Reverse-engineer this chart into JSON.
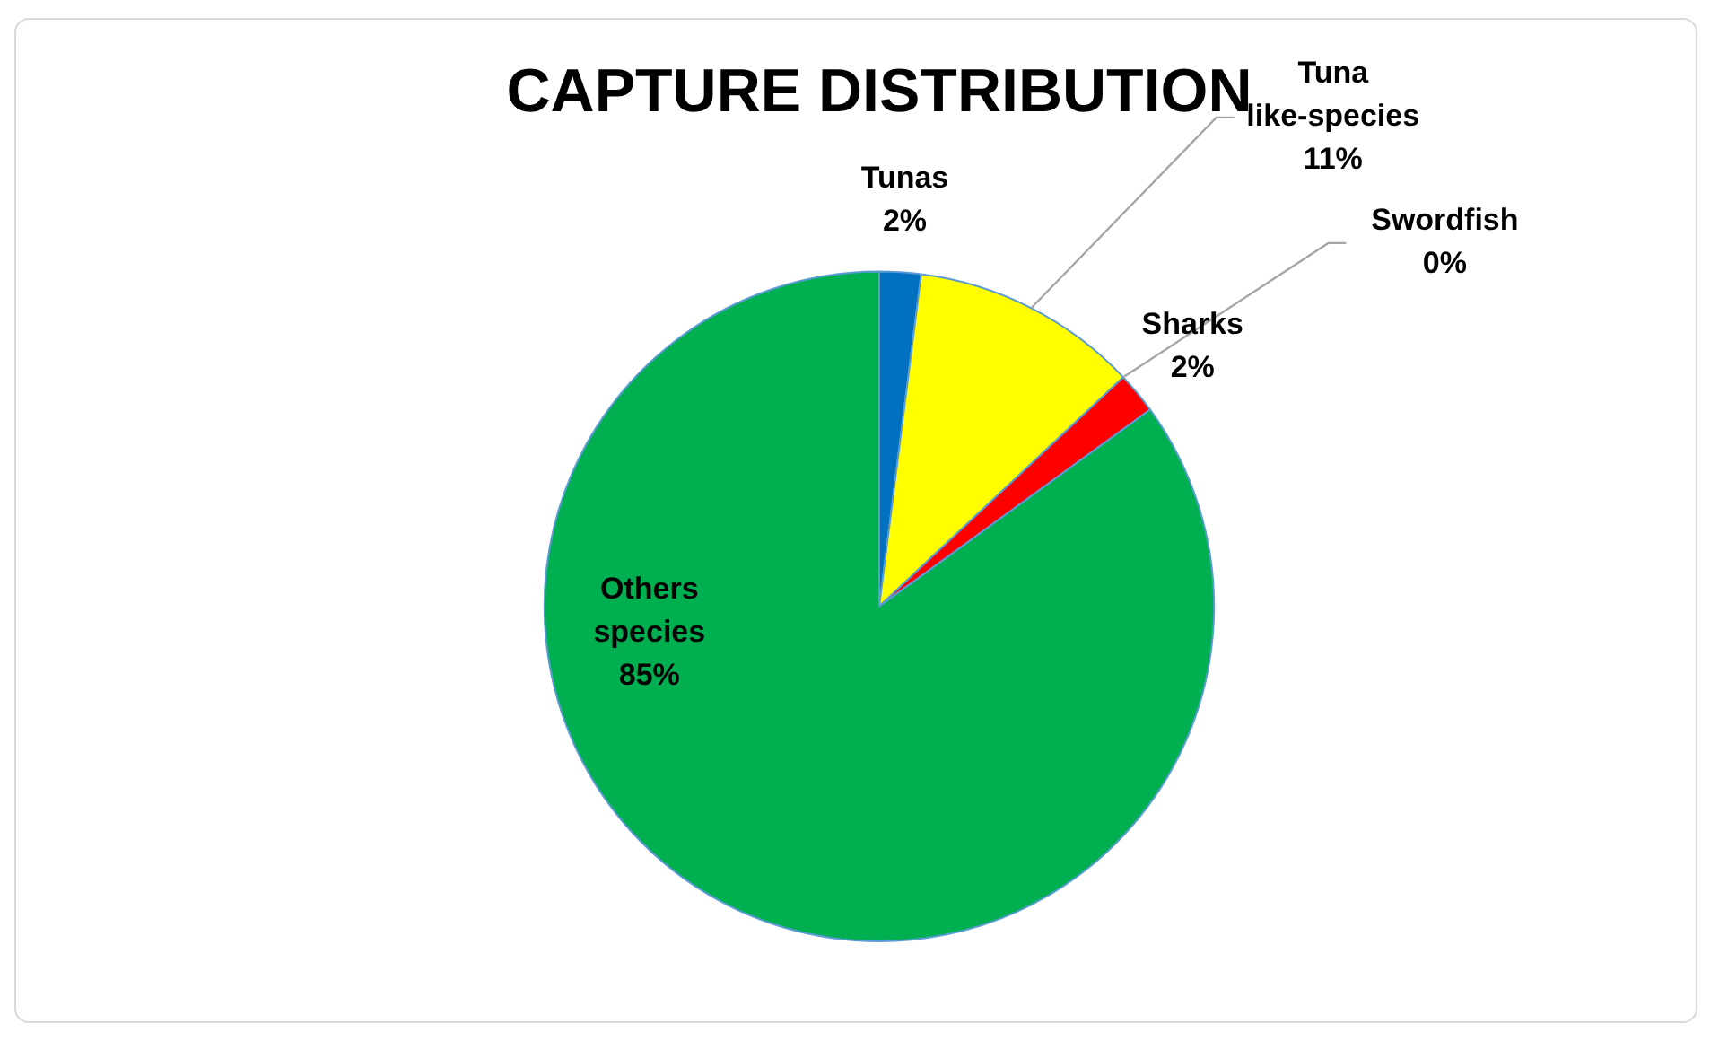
{
  "chart_data": {
    "type": "pie",
    "title": "CAPTURE DISTRIBUTION",
    "categories": [
      "Tunas",
      "Tuna like-species",
      "Swordfish",
      "Sharks",
      "Others species"
    ],
    "values": [
      2,
      11,
      0,
      2,
      85
    ],
    "value_labels": [
      "2%",
      "11%",
      "0%",
      "2%",
      "85%"
    ],
    "colors": [
      "#0070c0",
      "#ffff00",
      "#ffc000",
      "#ff0000",
      "#00b050"
    ],
    "legend": false
  }
}
